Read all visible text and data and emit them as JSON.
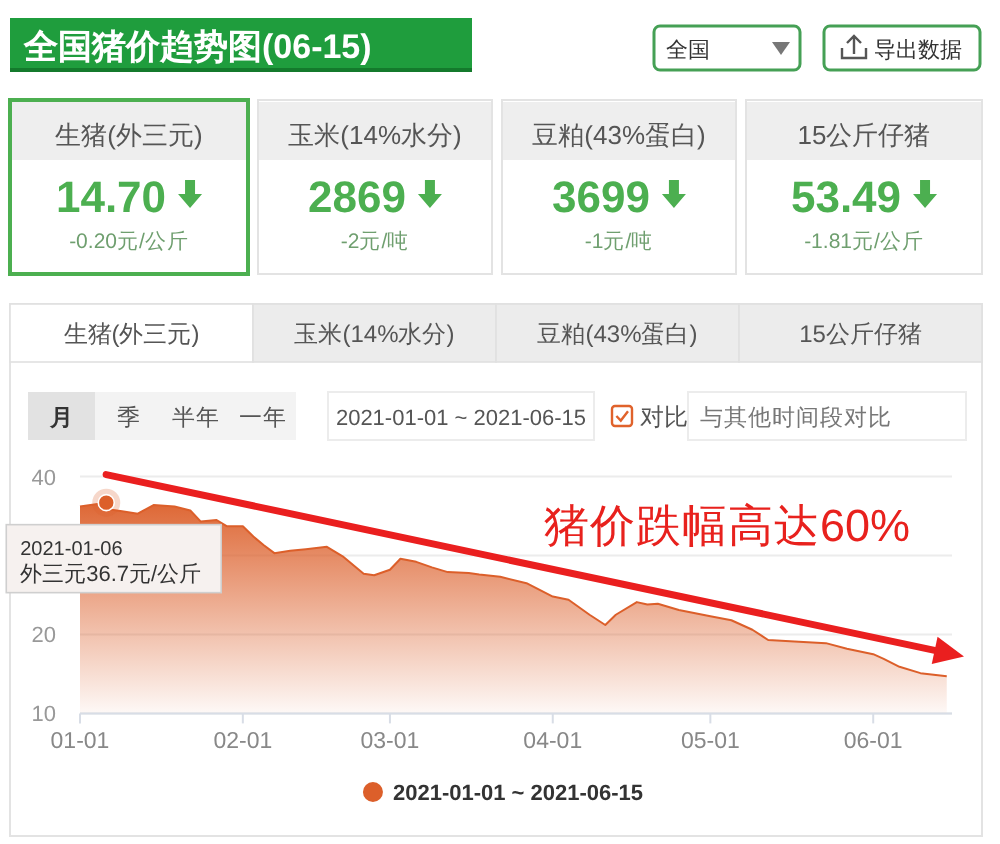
{
  "chart_data": [
    {
      "type": "other",
      "title": "全国猪价趋势图(06-15)",
      "annotations": [
        "全国",
        "导出数据"
      ]
    },
    {
      "type": "other",
      "title": "生猪(外三元)",
      "annotations": [
        "14.70",
        "-0.20元/公斤"
      ]
    },
    {
      "type": "other",
      "title": "玉米(14%水分)",
      "annotations": [
        "2869",
        "-2元/吨"
      ]
    },
    {
      "type": "other",
      "title": "豆粕(43%蛋白)",
      "annotations": [
        "3699",
        "-1元/吨"
      ]
    },
    {
      "type": "other",
      "title": "15公斤仔猪",
      "annotations": [
        "53.49",
        "-1.81元/公斤"
      ]
    },
    {
      "type": "other",
      "categories": [
        "生猪(外三元)",
        "玉米(14%水分)",
        "豆粕(43%蛋白)",
        "15公斤仔猪"
      ]
    },
    {
      "type": "other",
      "categories": [
        "月",
        "季",
        "半年",
        "一年"
      ],
      "annotations": [
        "2021-01-01 ~ 2021-06-15",
        "对比",
        "与其他时间段对比"
      ]
    },
    {
      "type": "area",
      "x": [
        "2021-01-01",
        "2021-01-06",
        "2021-01-07",
        "2021-01-09",
        "2021-01-12",
        "2021-01-15",
        "2021-01-19",
        "2021-01-22",
        "2021-01-24",
        "2021-01-27",
        "2021-01-29",
        "2021-02-01",
        "2021-02-03",
        "2021-02-05",
        "2021-02-07",
        "2021-02-10",
        "2021-02-13",
        "2021-02-17",
        "2021-02-20",
        "2021-02-24",
        "2021-02-26",
        "2021-03-01",
        "2021-03-03",
        "2021-03-06",
        "2021-03-09",
        "2021-03-12",
        "2021-03-16",
        "2021-03-18",
        "2021-03-22",
        "2021-03-27",
        "2021-04-01",
        "2021-04-04",
        "2021-04-08",
        "2021-04-11",
        "2021-04-13",
        "2021-04-17",
        "2021-04-19",
        "2021-04-21",
        "2021-04-25",
        "2021-05-01",
        "2021-05-05",
        "2021-05-09",
        "2021-05-12",
        "2021-05-17",
        "2021-05-23",
        "2021-05-27",
        "2021-06-01",
        "2021-06-03",
        "2021-06-06",
        "2021-06-10",
        "2021-06-15"
      ],
      "series": [
        {
          "name": "2021-01-01 ~ 2021-06-15",
          "color": "#dc5f2a",
          "values": [
            36.2,
            36.7,
            35.8,
            35.6,
            35.3,
            36.4,
            36.2,
            35.7,
            34.3,
            34.5,
            33.7,
            33.7,
            32.4,
            31.3,
            30.3,
            30.6,
            30.8,
            31.1,
            29.9,
            27.7,
            27.5,
            28.2,
            29.6,
            29.2,
            28.5,
            27.9,
            27.8,
            27.6,
            27.3,
            26.5,
            24.8,
            24.4,
            22.5,
            21.2,
            22.5,
            24.1,
            23.8,
            23.9,
            23.1,
            22.3,
            21.8,
            20.6,
            19.3,
            19.1,
            18.9,
            18.2,
            17.5,
            16.9,
            15.9,
            15.1,
            14.7
          ]
        }
      ],
      "xlim": [
        "2021-01-01",
        "2021-06-16"
      ],
      "xticks": [
        {
          "value": "2021-01-01",
          "label": "01-01"
        },
        {
          "value": "2021-02-01",
          "label": "02-01"
        },
        {
          "value": "2021-03-01",
          "label": "03-01"
        },
        {
          "value": "2021-04-01",
          "label": "04-01"
        },
        {
          "value": "2021-05-01",
          "label": "05-01"
        },
        {
          "value": "2021-06-01",
          "label": "06-01"
        }
      ],
      "ylim": [
        10,
        40
      ],
      "yticks": [
        10,
        20,
        {
          "value": 30,
          "label": null
        },
        40
      ],
      "grid": "y",
      "legend": "bottom",
      "annotations": [
        {
          "text": "2021-01-06\n外三元36.7元/公斤",
          "x": "2021-01-06",
          "y": 36.7
        },
        "猪价跌幅高达60%"
      ]
    }
  ]
}
